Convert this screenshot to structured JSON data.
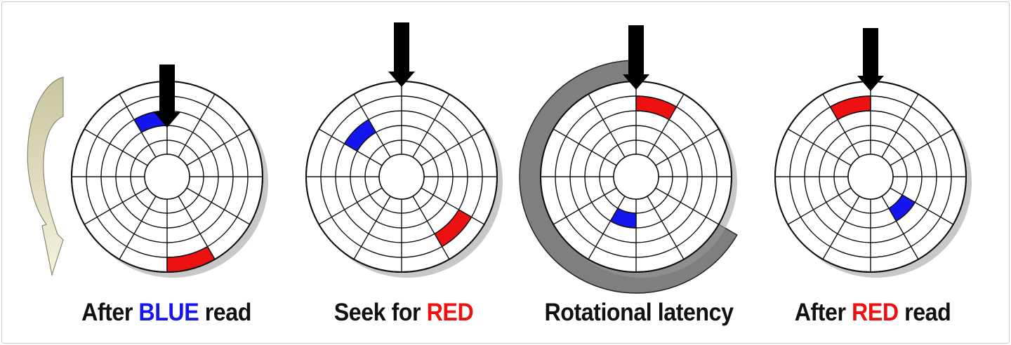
{
  "colors": {
    "blue": "#1515f0",
    "red": "#ee1111",
    "latency_gray": "#7f7f7f",
    "rotate_arrow_top": "#c8c6a2",
    "rotate_arrow_bottom": "#f5f2de",
    "head_arrow": "#000000"
  },
  "icons": {
    "rotation": "curved-rotation-arrow-icon",
    "head": "down-arrow-icon"
  },
  "panels": [
    {
      "id": "after-blue-read",
      "caption": {
        "before": "After ",
        "highlight": "BLUE",
        "highlight_color": "blue",
        "after": " read"
      }
    },
    {
      "id": "seek-for-red",
      "caption": {
        "before": "Seek for ",
        "highlight": "RED",
        "highlight_color": "red",
        "after": ""
      }
    },
    {
      "id": "rotational-latency",
      "caption": {
        "before": "Rotational latency",
        "highlight": "",
        "highlight_color": "",
        "after": ""
      }
    },
    {
      "id": "after-red-read",
      "caption": {
        "before": "After ",
        "highlight": "RED",
        "highlight_color": "red",
        "after": " read"
      }
    }
  ]
}
